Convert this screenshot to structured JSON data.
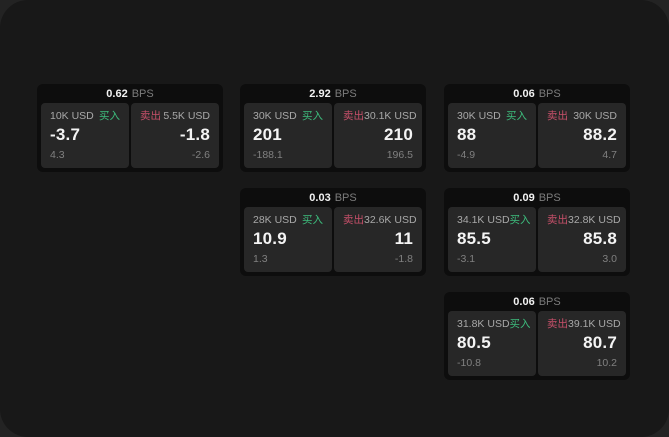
{
  "labels": {
    "bps_unit": "BPS",
    "buy": "买入",
    "sell": "卖出"
  },
  "colors": {
    "buy_accent": "#3dbd7d",
    "sell_accent": "#c7506a",
    "surface": "#181818",
    "card": "#0d0d0d",
    "tile": "#272727"
  },
  "cards": [
    {
      "bps_value": "0.62",
      "row": 0,
      "col": 0,
      "buy": {
        "amount": "10K USD",
        "value": "-3.7",
        "delta": "4.3"
      },
      "sell": {
        "amount": "5.5K USD",
        "value": "-1.8",
        "delta": "-2.6"
      }
    },
    {
      "bps_value": "2.92",
      "row": 0,
      "col": 1,
      "buy": {
        "amount": "30K USD",
        "value": "201",
        "delta": "-188.1"
      },
      "sell": {
        "amount": "30.1K USD",
        "value": "210",
        "delta": "196.5"
      }
    },
    {
      "bps_value": "0.06",
      "row": 0,
      "col": 2,
      "buy": {
        "amount": "30K USD",
        "value": "88",
        "delta": "-4.9"
      },
      "sell": {
        "amount": "30K USD",
        "value": "88.2",
        "delta": "4.7"
      }
    },
    {
      "bps_value": "0.03",
      "row": 1,
      "col": 1,
      "buy": {
        "amount": "28K USD",
        "value": "10.9",
        "delta": "1.3"
      },
      "sell": {
        "amount": "32.6K USD",
        "value": "11",
        "delta": "-1.8"
      }
    },
    {
      "bps_value": "0.09",
      "row": 1,
      "col": 2,
      "buy": {
        "amount": "34.1K USD",
        "value": "85.5",
        "delta": "-3.1"
      },
      "sell": {
        "amount": "32.8K USD",
        "value": "85.8",
        "delta": "3.0"
      }
    },
    {
      "bps_value": "0.06",
      "row": 2,
      "col": 2,
      "buy": {
        "amount": "31.8K USD",
        "value": "80.5",
        "delta": "-10.8"
      },
      "sell": {
        "amount": "39.1K USD",
        "value": "80.7",
        "delta": "10.2"
      }
    }
  ]
}
